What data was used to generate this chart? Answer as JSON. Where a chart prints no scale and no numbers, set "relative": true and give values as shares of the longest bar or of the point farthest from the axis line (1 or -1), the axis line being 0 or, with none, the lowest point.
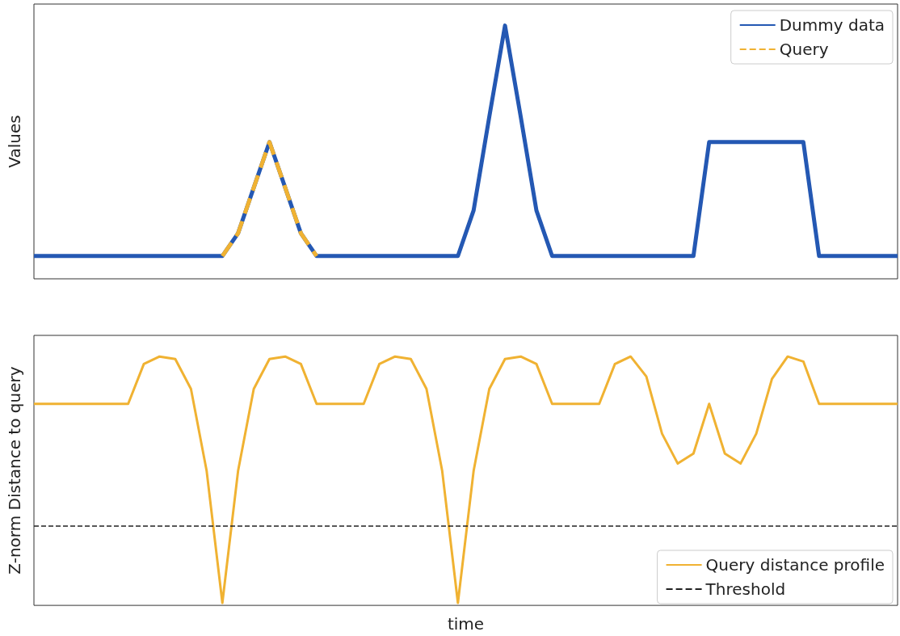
{
  "chart_data": [
    {
      "type": "line",
      "ylabel": "Values",
      "relative": true,
      "grid": false,
      "legend": "top right",
      "categories": [
        null,
        null,
        null,
        null,
        null,
        null,
        null,
        null,
        null,
        null,
        null,
        null,
        null,
        null,
        null,
        null,
        null,
        null,
        null,
        null,
        null,
        null,
        null,
        null,
        null,
        null,
        null,
        null,
        null,
        null,
        null,
        null,
        null,
        null,
        null,
        null,
        null,
        null,
        null,
        null,
        null,
        null,
        null,
        null,
        null,
        null,
        null,
        null,
        null,
        null,
        null,
        null,
        null,
        null,
        null,
        null
      ],
      "series": [
        {
          "name": "Dummy data",
          "color": "#2458b3",
          "line_style": "solid",
          "values": [
            0.09,
            0.09,
            0.09,
            0.09,
            0.09,
            0.09,
            0.09,
            0.09,
            0.09,
            0.09,
            0.09,
            0.09,
            0.09,
            0.18,
            0.36,
            0.54,
            0.36,
            0.18,
            0.09,
            0.09,
            0.09,
            0.09,
            0.09,
            0.09,
            0.09,
            0.09,
            0.09,
            0.09,
            0.27,
            0.64,
            1,
            0.64,
            0.27,
            0.09,
            0.09,
            0.09,
            0.09,
            0.09,
            0.09,
            0.09,
            0.09,
            0.09,
            0.09,
            0.54,
            0.54,
            0.54,
            0.54,
            0.54,
            0.54,
            0.54,
            0.09,
            0.09,
            0.09,
            0.09,
            0.09,
            0.09
          ]
        },
        {
          "name": "Query",
          "color": "#f0b232",
          "line_style": "dashed",
          "values": [
            null,
            null,
            null,
            null,
            null,
            null,
            null,
            null,
            null,
            null,
            null,
            null,
            0.09,
            0.18,
            0.36,
            0.54,
            0.36,
            0.18,
            0.09,
            null,
            null,
            null,
            null,
            null,
            null,
            null,
            null,
            null,
            null,
            null,
            null,
            null,
            null,
            null,
            null,
            null,
            null,
            null,
            null,
            null,
            null,
            null,
            null,
            null,
            null,
            null,
            null,
            null,
            null,
            null,
            null,
            null,
            null,
            null,
            null,
            null
          ]
        }
      ]
    },
    {
      "type": "line",
      "ylabel": "Z-norm Distance to query",
      "xlabel": "time",
      "relative": true,
      "grid": false,
      "legend": "bottom right",
      "categories": [
        null,
        null,
        null,
        null,
        null,
        null,
        null,
        null,
        null,
        null,
        null,
        null,
        null,
        null,
        null,
        null,
        null,
        null,
        null,
        null,
        null,
        null,
        null,
        null,
        null,
        null,
        null,
        null,
        null,
        null,
        null,
        null,
        null,
        null,
        null,
        null,
        null,
        null,
        null,
        null,
        null,
        null,
        null,
        null,
        null,
        null,
        null,
        null,
        null,
        null,
        null,
        null,
        null,
        null,
        null,
        null
      ],
      "series": [
        {
          "name": "Query distance profile",
          "color": "#f0b232",
          "line_style": "solid",
          "values": [
            0.81,
            0.81,
            0.81,
            0.81,
            0.81,
            0.81,
            0.81,
            0.97,
            1,
            0.99,
            0.87,
            0.54,
            0.01,
            0.54,
            0.87,
            0.99,
            1,
            0.97,
            0.81,
            0.81,
            0.81,
            0.81,
            0.97,
            1,
            0.99,
            0.87,
            0.54,
            0.01,
            0.54,
            0.87,
            0.99,
            1,
            0.97,
            0.81,
            0.81,
            0.81,
            0.81,
            0.97,
            1,
            0.92,
            0.69,
            0.57,
            0.61,
            0.81,
            0.61,
            0.57,
            0.69,
            0.91,
            1,
            0.98,
            0.81,
            0.81,
            0.81,
            0.81,
            0.81,
            0.81
          ]
        }
      ],
      "ref_lines": [
        {
          "axis": "y",
          "value": 0.32,
          "label": "Threshold",
          "color": "#222222",
          "line_style": "dashed"
        }
      ]
    }
  ]
}
